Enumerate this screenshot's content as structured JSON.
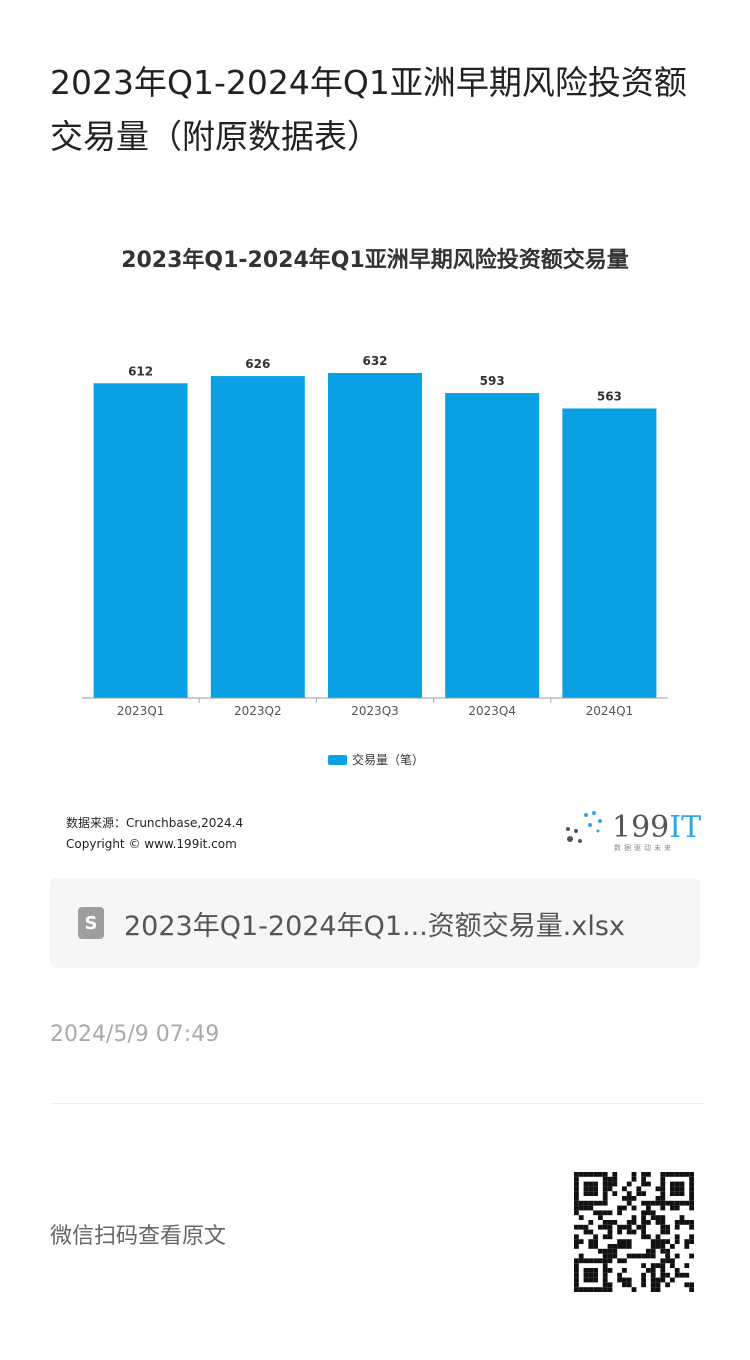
{
  "article": {
    "title": "2023年Q1-2024年Q1亚洲早期风险投资额交易量（附原数据表）",
    "date": "2024/5/9 07:49",
    "scan_label": "微信扫码查看原文"
  },
  "attachment": {
    "icon": "spreadsheet-file-icon",
    "icon_glyph": "S",
    "name": "2023年Q1-2024年Q1...资额交易量.xlsx"
  },
  "chart_data": {
    "type": "bar",
    "title": "2023年Q1-2024年Q1亚洲早期风险投资额交易量",
    "categories": [
      "2023Q1",
      "2023Q2",
      "2023Q3",
      "2023Q4",
      "2024Q1"
    ],
    "series": [
      {
        "name": "交易量（笔）",
        "values": [
          612,
          626,
          632,
          593,
          563
        ],
        "color": "#0aa0e4"
      }
    ],
    "ylim": [
      0,
      700
    ],
    "grid": false,
    "legend": "bottom",
    "xlabel": "",
    "ylabel": ""
  },
  "source": {
    "line1": "数据来源：Crunchbase,2024.4",
    "line2": "Copyright © www.199it.com"
  },
  "logo": {
    "text_num": "199",
    "text_it": "IT",
    "tagline": "数据驱动未来"
  }
}
